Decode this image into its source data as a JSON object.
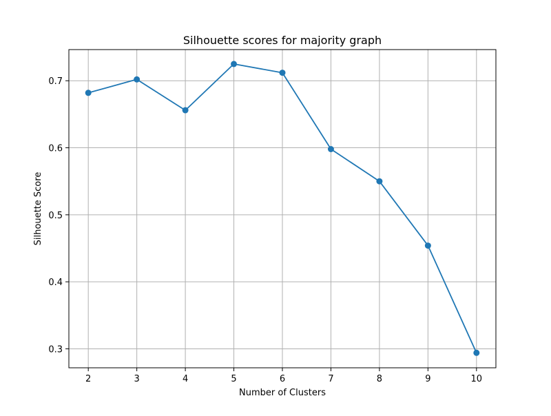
{
  "chart_data": {
    "type": "line",
    "title": "Silhouette scores for majority graph",
    "xlabel": "Number of Clusters",
    "ylabel": "Silhouette Score",
    "x": [
      2,
      3,
      4,
      5,
      6,
      7,
      8,
      9,
      10
    ],
    "series": [
      {
        "values": [
          0.682,
          0.702,
          0.656,
          0.725,
          0.712,
          0.598,
          0.55,
          0.454,
          0.294
        ],
        "color": "#1f77b4",
        "marker": "circle"
      }
    ],
    "xlim": [
      1.6,
      10.4
    ],
    "ylim": [
      0.2717,
      0.7465
    ],
    "xticks": [
      "2",
      "3",
      "4",
      "5",
      "6",
      "7",
      "8",
      "9",
      "10"
    ],
    "yticks": [
      "0.3",
      "0.4",
      "0.5",
      "0.6",
      "0.7"
    ],
    "grid": true
  }
}
